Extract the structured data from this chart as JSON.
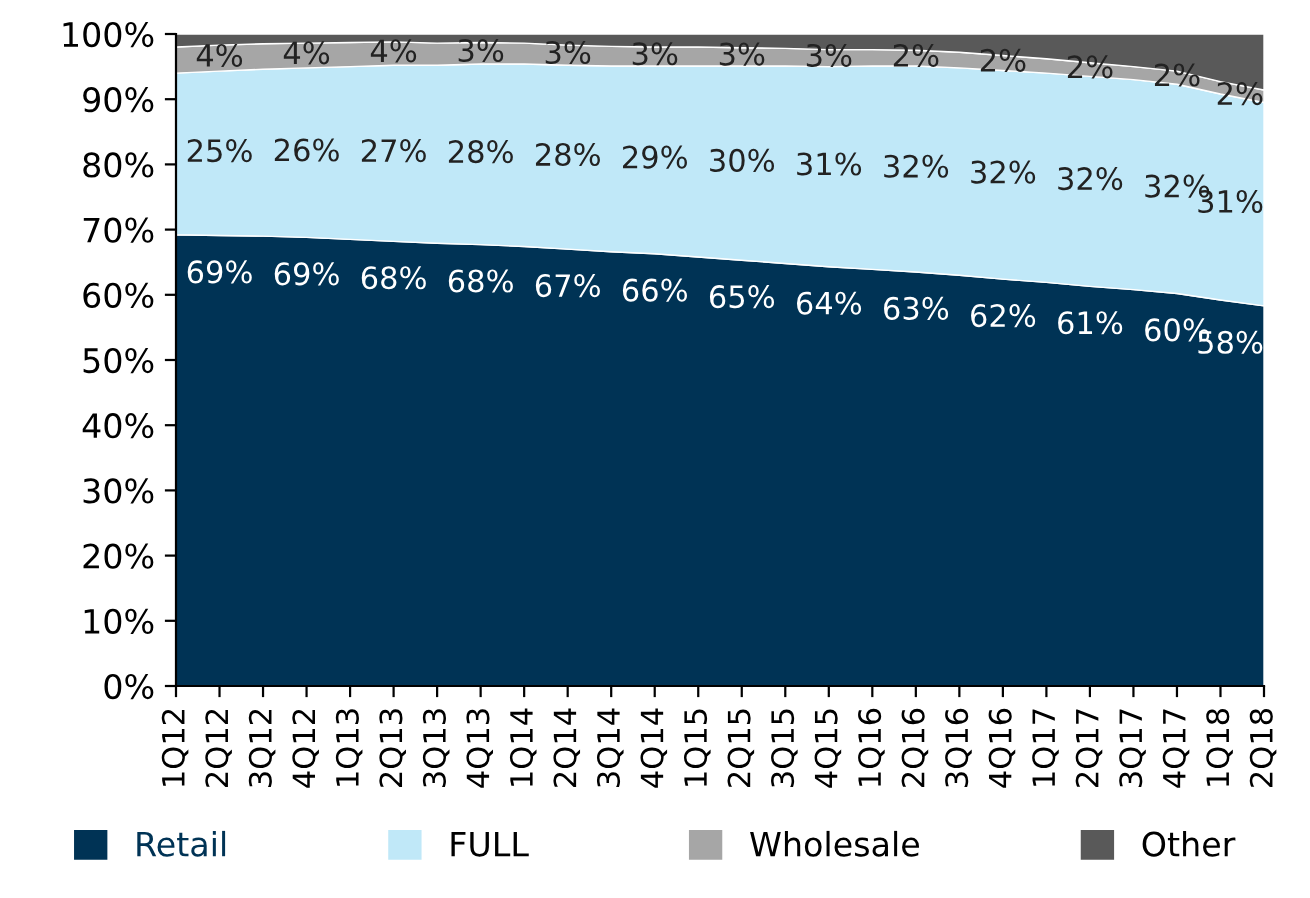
{
  "chart_data": {
    "type": "area",
    "stacked": true,
    "categories": [
      "1Q12",
      "2Q12",
      "3Q12",
      "4Q12",
      "1Q13",
      "2Q13",
      "3Q13",
      "4Q13",
      "1Q14",
      "2Q14",
      "3Q14",
      "4Q14",
      "1Q15",
      "2Q15",
      "3Q15",
      "4Q15",
      "1Q16",
      "2Q16",
      "3Q16",
      "4Q16",
      "1Q17",
      "2Q17",
      "3Q17",
      "4Q17",
      "1Q18",
      "2Q18"
    ],
    "series": [
      {
        "name": "Retail",
        "color": "#003355",
        "values": [
          69.2,
          69.1,
          69.0,
          68.8,
          68.5,
          68.2,
          67.9,
          67.7,
          67.4,
          67.0,
          66.6,
          66.3,
          65.8,
          65.3,
          64.8,
          64.3,
          63.9,
          63.5,
          63.0,
          62.4,
          61.9,
          61.3,
          60.8,
          60.2,
          59.2,
          58.3
        ],
        "value_labels": [
          null,
          "69%",
          null,
          "69%",
          null,
          "68%",
          null,
          "68%",
          null,
          "67%",
          null,
          "66%",
          null,
          "65%",
          null,
          "64%",
          null,
          "63%",
          null,
          "62%",
          null,
          "61%",
          null,
          "60%",
          null,
          "58%"
        ]
      },
      {
        "name": "FULL",
        "color": "#c0e8f8",
        "values": [
          24.8,
          25.2,
          25.6,
          26.0,
          26.5,
          27.0,
          27.3,
          27.7,
          28.0,
          28.2,
          28.5,
          28.8,
          29.3,
          29.8,
          30.3,
          30.7,
          31.2,
          31.6,
          31.8,
          32.0,
          32.1,
          32.2,
          32.2,
          32.1,
          31.6,
          31.2
        ],
        "value_labels": [
          null,
          "25%",
          null,
          "26%",
          null,
          "27%",
          null,
          "28%",
          null,
          "28%",
          null,
          "29%",
          null,
          "30%",
          null,
          "31%",
          null,
          "32%",
          null,
          "32%",
          null,
          "32%",
          null,
          "32%",
          null,
          "31%"
        ]
      },
      {
        "name": "Wholesale",
        "color": "#a6a6a6",
        "values": [
          4.0,
          4.0,
          3.9,
          3.8,
          3.7,
          3.6,
          3.4,
          3.3,
          3.2,
          3.1,
          3.0,
          2.9,
          2.9,
          2.8,
          2.7,
          2.6,
          2.5,
          2.4,
          2.4,
          2.3,
          2.2,
          2.1,
          2.0,
          2.0,
          1.9,
          1.9
        ],
        "value_labels": [
          null,
          "4%",
          null,
          "4%",
          null,
          "4%",
          null,
          "3%",
          null,
          "3%",
          null,
          "3%",
          null,
          "3%",
          null,
          "3%",
          null,
          "2%",
          null,
          "2%",
          null,
          "2%",
          null,
          "2%",
          null,
          "2%"
        ]
      },
      {
        "name": "Other",
        "color": "#595959",
        "values": [
          2.0,
          1.7,
          1.5,
          1.4,
          1.3,
          1.2,
          1.4,
          1.3,
          1.4,
          1.7,
          1.9,
          2.0,
          2.0,
          2.1,
          2.2,
          2.4,
          2.4,
          2.5,
          2.8,
          3.3,
          3.8,
          4.4,
          5.0,
          5.7,
          7.3,
          8.6
        ]
      }
    ],
    "ylim": [
      0,
      100
    ],
    "yticks": [
      {
        "value": 0,
        "label": "0%"
      },
      {
        "value": 10,
        "label": "10%"
      },
      {
        "value": 20,
        "label": "20%"
      },
      {
        "value": 30,
        "label": "30%"
      },
      {
        "value": 40,
        "label": "40%"
      },
      {
        "value": 50,
        "label": "50%"
      },
      {
        "value": 60,
        "label": "60%"
      },
      {
        "value": 70,
        "label": "70%"
      },
      {
        "value": 80,
        "label": "80%"
      },
      {
        "value": 90,
        "label": "90%"
      },
      {
        "value": 100,
        "label": "100%"
      }
    ],
    "legend": "bottom"
  }
}
